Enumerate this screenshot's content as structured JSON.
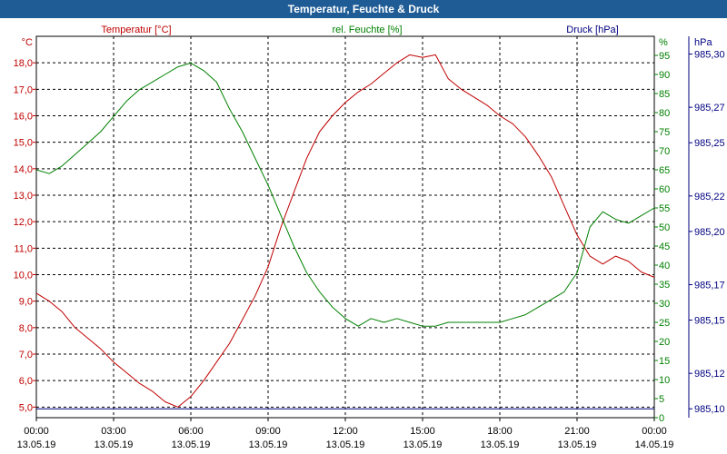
{
  "window": {
    "title": "Temperatur, Feuchte & Druck"
  },
  "colors": {
    "temperature": "#c00000",
    "humidity": "#008000",
    "pressure": "#000080",
    "titlebar": "#1f5c96",
    "grid": "#000000"
  },
  "chart_data": {
    "type": "line",
    "title": "Temperatur, Feuchte & Druck",
    "grid": true,
    "x_ticks": [
      {
        "time": "00:00",
        "date": "13.05.19"
      },
      {
        "time": "03:00",
        "date": "13.05.19"
      },
      {
        "time": "06:00",
        "date": "13.05.19"
      },
      {
        "time": "09:00",
        "date": "13.05.19"
      },
      {
        "time": "12:00",
        "date": "13.05.19"
      },
      {
        "time": "15:00",
        "date": "13.05.19"
      },
      {
        "time": "18:00",
        "date": "13.05.19"
      },
      {
        "time": "21:00",
        "date": "13.05.19"
      },
      {
        "time": "00:00",
        "date": "14.05.19"
      }
    ],
    "x_range_hours": [
      0,
      24
    ],
    "axes": {
      "temperature": {
        "unit_label": "°C",
        "title": "Temperatur [°C]",
        "range": [
          4.6,
          19.0
        ],
        "ticks": [
          "5,0",
          "6,0",
          "7,0",
          "8,0",
          "9,0",
          "10,0",
          "11,0",
          "12,0",
          "13,0",
          "14,0",
          "15,0",
          "16,0",
          "17,0",
          "18,0"
        ],
        "tick_values": [
          5,
          6,
          7,
          8,
          9,
          10,
          11,
          12,
          13,
          14,
          15,
          16,
          17,
          18
        ]
      },
      "humidity": {
        "unit_label": "%",
        "title": "rel. Feuchte [%]",
        "range": [
          0,
          100
        ],
        "ticks": [
          "0",
          "5",
          "10",
          "15",
          "20",
          "25",
          "30",
          "35",
          "40",
          "45",
          "50",
          "55",
          "60",
          "65",
          "70",
          "75",
          "80",
          "85",
          "90",
          "95"
        ],
        "tick_values": [
          0,
          5,
          10,
          15,
          20,
          25,
          30,
          35,
          40,
          45,
          50,
          55,
          60,
          65,
          70,
          75,
          80,
          85,
          90,
          95
        ]
      },
      "pressure": {
        "unit_label": "hPa",
        "title": "Druck [hPa]",
        "range": [
          985.095,
          985.31
        ],
        "ticks": [
          "985,10",
          "985,12",
          "985,15",
          "985,17",
          "985,20",
          "985,22",
          "985,25",
          "985,27",
          "985,30"
        ],
        "tick_values": [
          985.1,
          985.12,
          985.15,
          985.17,
          985.2,
          985.22,
          985.25,
          985.27,
          985.3
        ]
      }
    },
    "series": [
      {
        "name": "Temperatur [°C]",
        "axis": "temperature",
        "x": [
          0,
          0.5,
          1,
          1.5,
          2,
          2.5,
          3,
          3.5,
          4,
          4.5,
          5,
          5.5,
          6,
          6.5,
          7,
          7.5,
          8,
          8.5,
          9,
          9.5,
          10,
          10.5,
          11,
          11.5,
          12,
          12.5,
          13,
          13.5,
          14,
          14.5,
          15,
          15.5,
          16,
          16.5,
          17,
          17.5,
          18,
          18.5,
          19,
          19.5,
          20,
          20.5,
          21,
          21.5,
          22,
          22.5,
          23,
          23.5,
          24
        ],
        "y": [
          9.3,
          9.0,
          8.6,
          8.0,
          7.6,
          7.2,
          6.7,
          6.3,
          5.9,
          5.6,
          5.2,
          5.0,
          5.4,
          6.0,
          6.7,
          7.4,
          8.3,
          9.2,
          10.3,
          11.8,
          13.1,
          14.4,
          15.4,
          16.0,
          16.5,
          16.9,
          17.2,
          17.6,
          18.0,
          18.3,
          18.2,
          18.3,
          17.4,
          17.0,
          16.7,
          16.4,
          16.0,
          15.7,
          15.2,
          14.5,
          13.7,
          12.6,
          11.5,
          10.7,
          10.4,
          10.7,
          10.5,
          10.1,
          9.9
        ]
      },
      {
        "name": "rel. Feuchte [%]",
        "axis": "humidity",
        "x": [
          0,
          0.5,
          1,
          1.5,
          2,
          2.5,
          3,
          3.5,
          4,
          4.5,
          5,
          5.5,
          6,
          6.5,
          7,
          7.5,
          8,
          8.5,
          9,
          9.5,
          10,
          10.5,
          11,
          11.5,
          12,
          12.5,
          13,
          13.5,
          14,
          14.5,
          15,
          15.5,
          16,
          16.5,
          17,
          17.5,
          18,
          18.5,
          19,
          19.5,
          20,
          20.5,
          21,
          21.5,
          22,
          22.5,
          23,
          23.5,
          24
        ],
        "y": [
          65,
          64,
          66,
          69,
          72,
          75,
          79,
          83,
          86,
          88,
          90,
          92,
          93,
          91,
          88,
          81,
          75,
          68,
          61,
          53,
          45,
          38,
          33,
          29,
          26,
          24,
          26,
          25,
          26,
          25,
          24,
          24,
          25,
          25,
          25,
          25,
          25,
          26,
          27,
          29,
          31,
          33,
          38,
          50,
          54,
          52,
          51,
          53,
          55
        ]
      },
      {
        "name": "Druck [hPa]",
        "axis": "pressure",
        "x": [
          0,
          24
        ],
        "y": [
          985.1,
          985.1
        ]
      }
    ]
  }
}
